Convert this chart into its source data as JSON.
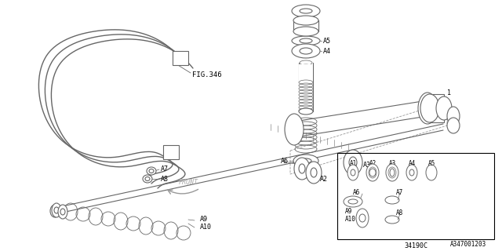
{
  "bg_color": "#ffffff",
  "line_color": "#666666",
  "part_number": "34190C",
  "diagram_code": "A347001203",
  "fig_ref": "FIG.346"
}
